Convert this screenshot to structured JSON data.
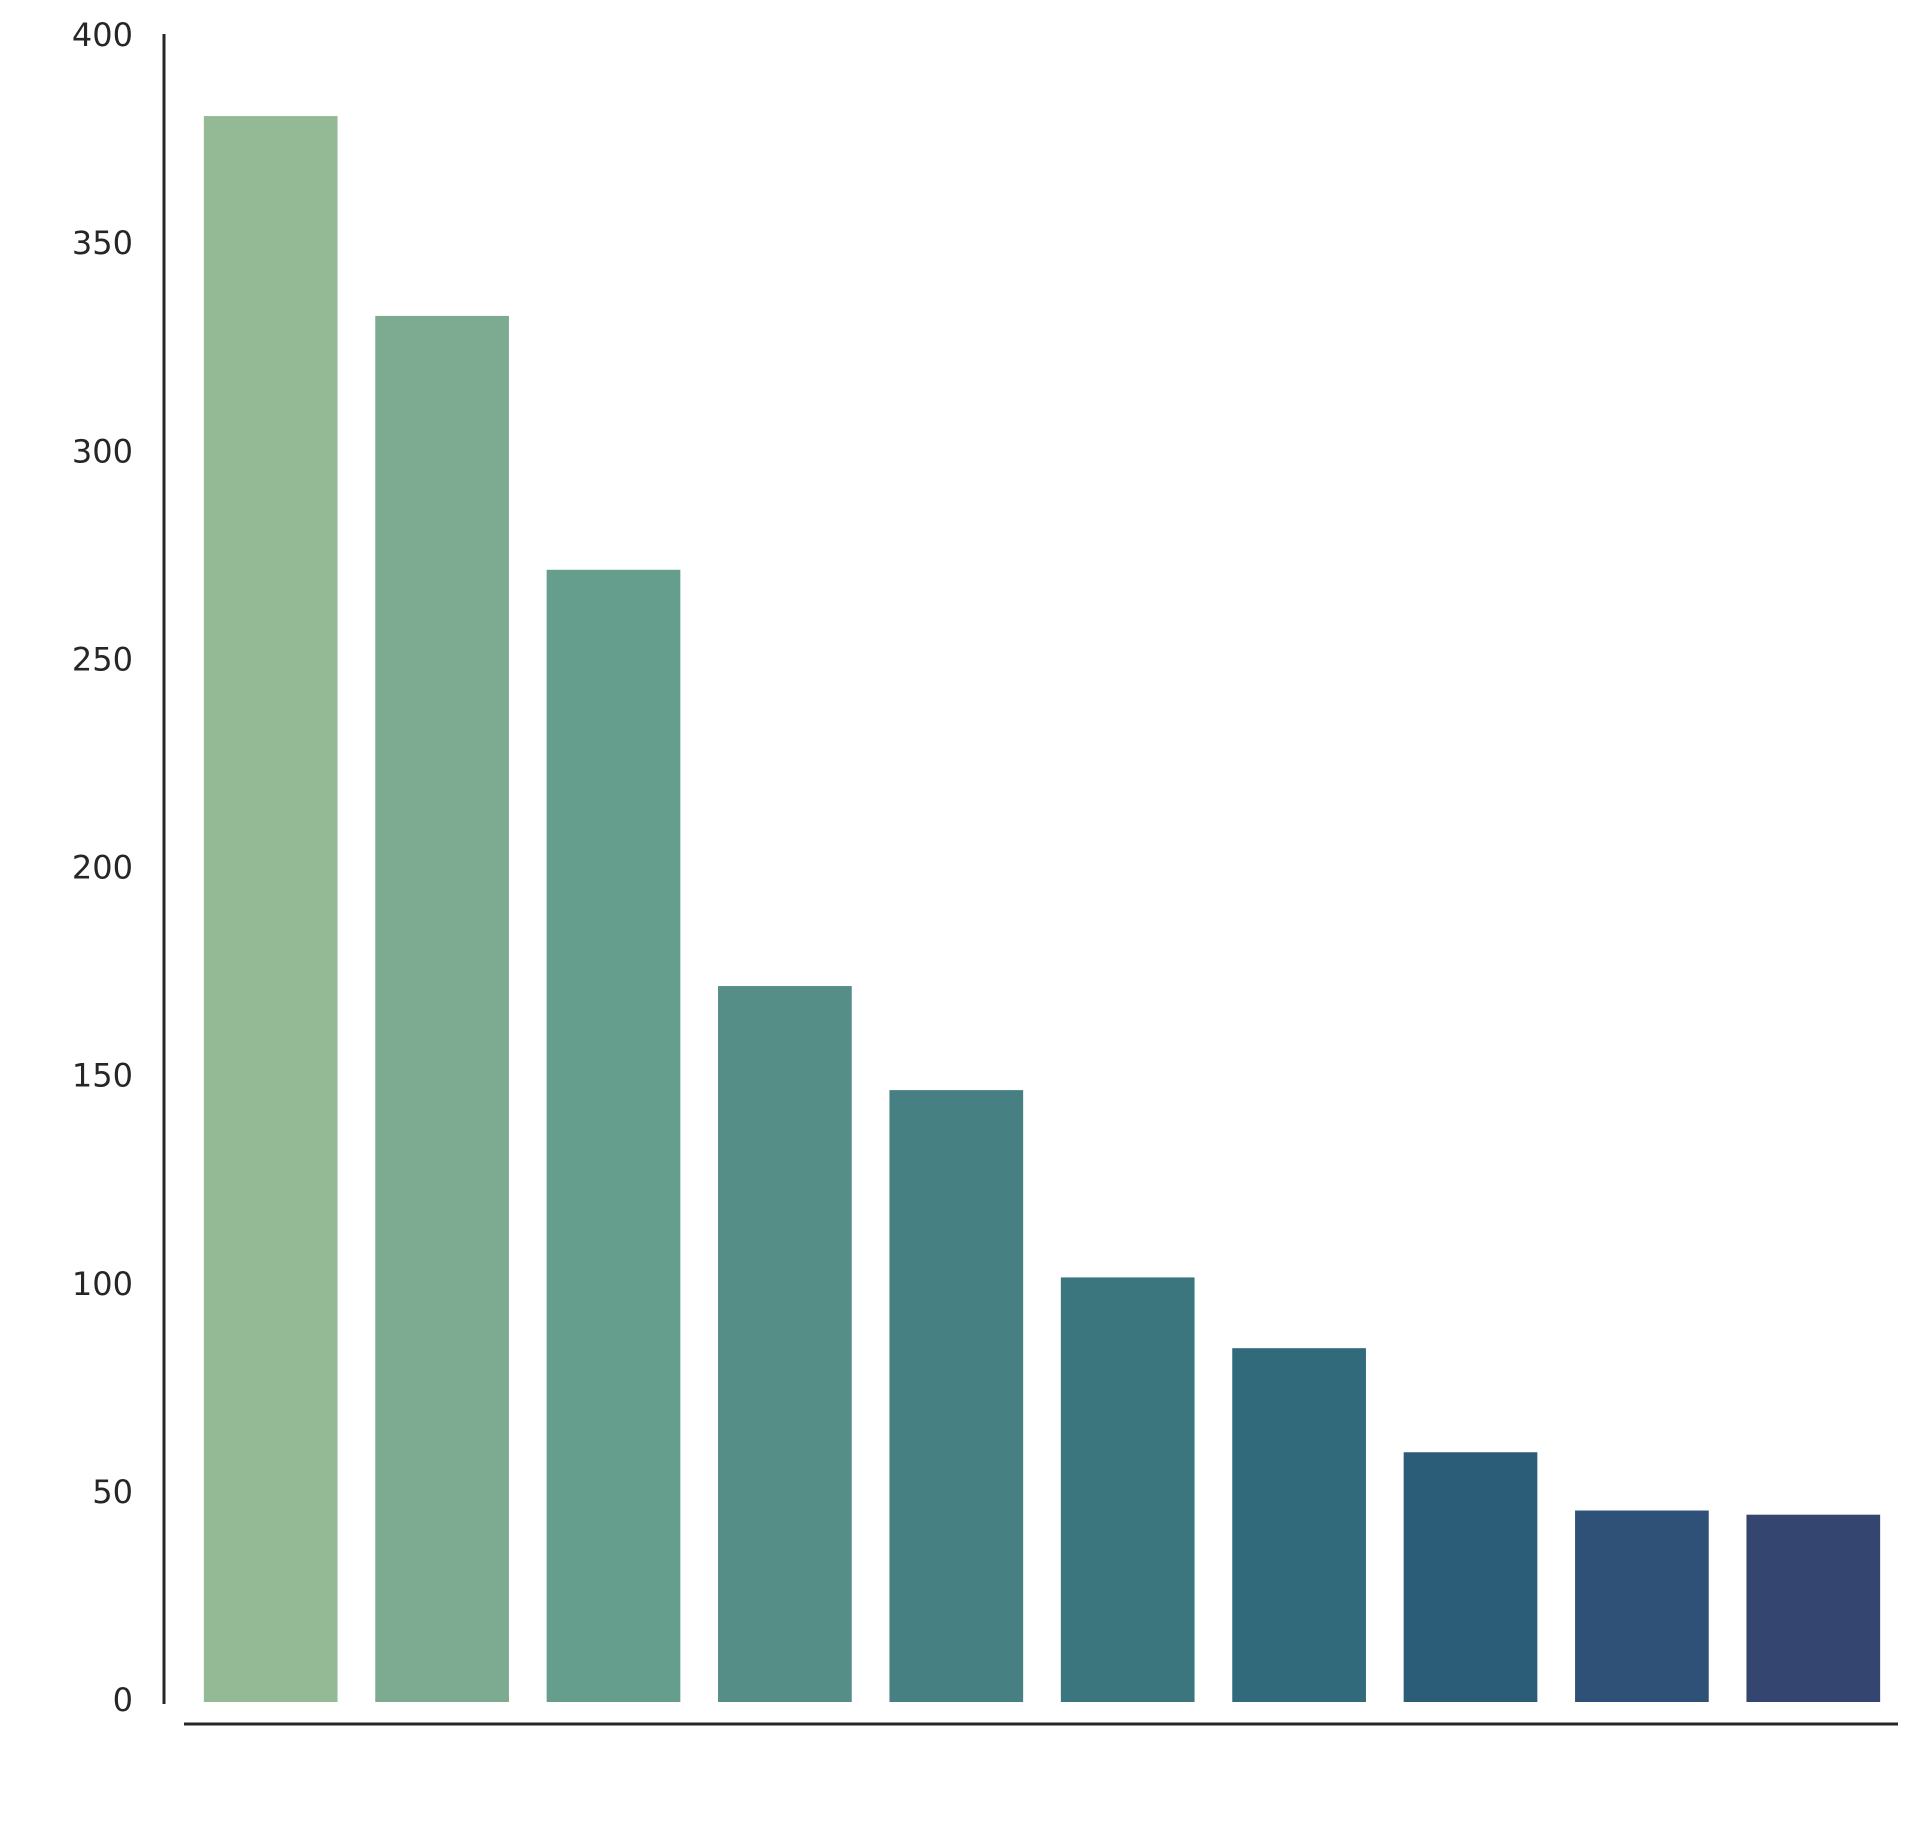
{
  "chart_data": {
    "type": "bar",
    "categories": [
      null,
      null,
      null,
      null,
      null,
      null,
      null,
      null,
      null,
      null
    ],
    "values": [
      381,
      333,
      272,
      172,
      147,
      102,
      85,
      60,
      46,
      45
    ],
    "colors": [
      "#93b995",
      "#7cab91",
      "#659e8c",
      "#548e87",
      "#468082",
      "#3b767e",
      "#306a7b",
      "#2b5c78",
      "#2f5077",
      "#344670"
    ],
    "ylim": [
      0,
      400
    ],
    "yticks": [
      0,
      50,
      100,
      150,
      200,
      250,
      300,
      350,
      400
    ],
    "grid": false
  }
}
